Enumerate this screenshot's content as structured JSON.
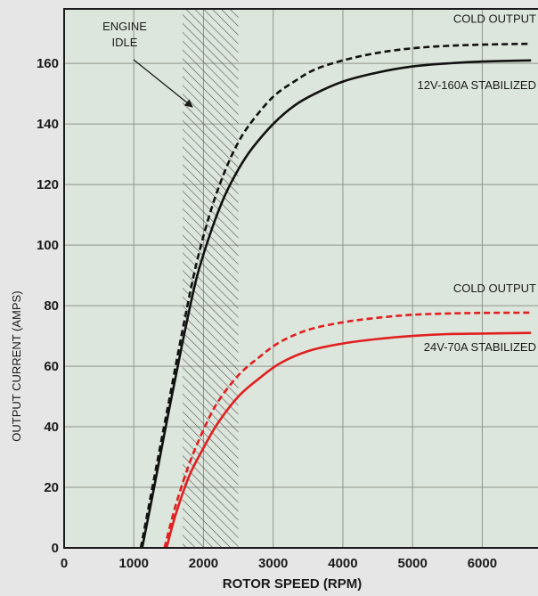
{
  "chart_data": {
    "type": "line",
    "title": "",
    "xlabel": "ROTOR SPEED (RPM)",
    "ylabel": "OUTPUT CURRENT (AMPS)",
    "xlim": [
      0,
      6800
    ],
    "ylim": [
      0,
      178
    ],
    "xticks": [
      "0",
      "1000",
      "2000",
      "3000",
      "4000",
      "5000",
      "6000"
    ],
    "yticks": [
      "0",
      "20",
      "40",
      "60",
      "80",
      "100",
      "120",
      "140",
      "160"
    ],
    "grid": true,
    "background_color": "#dde6dc",
    "series": [
      {
        "name": "COLD OUTPUT",
        "color": "#111111",
        "dashed": true,
        "x": [
          1100,
          1300,
          1500,
          1700,
          1900,
          2100,
          2300,
          2500,
          2700,
          3000,
          3300,
          3600,
          4000,
          4500,
          5000,
          5500,
          6000,
          6700
        ],
        "y": [
          0,
          24,
          48,
          72,
          94,
          111,
          124,
          134,
          141,
          149,
          154,
          158,
          161,
          163.5,
          165,
          165.8,
          166.2,
          166.5
        ]
      },
      {
        "name": "12V-160A STABILIZED",
        "color": "#111111",
        "dashed": false,
        "x": [
          1120,
          1300,
          1500,
          1700,
          1900,
          2100,
          2300,
          2500,
          2700,
          3000,
          3300,
          3600,
          4000,
          4500,
          5000,
          5500,
          6000,
          6700
        ],
        "y": [
          0,
          21,
          45,
          68,
          89,
          104,
          116,
          125,
          132,
          140,
          146,
          150,
          154,
          157,
          159,
          160,
          160.6,
          161
        ]
      },
      {
        "name": "COLD OUTPUT",
        "color": "#e01f1f",
        "dashed": true,
        "x": [
          1440,
          1600,
          1800,
          2000,
          2200,
          2500,
          2800,
          3100,
          3500,
          4000,
          4500,
          5000,
          5500,
          6000,
          6700
        ],
        "y": [
          0,
          14,
          28,
          39,
          48,
          57,
          63,
          68,
          72,
          74.5,
          76,
          77,
          77.4,
          77.6,
          77.7
        ]
      },
      {
        "name": "24V-70A STABILIZED",
        "color": "#e01f1f",
        "dashed": false,
        "x": [
          1470,
          1600,
          1800,
          2000,
          2200,
          2500,
          2800,
          3100,
          3500,
          4000,
          4500,
          5000,
          5500,
          6000,
          6700
        ],
        "y": [
          0,
          11,
          24,
          33,
          41,
          50,
          56,
          61,
          65,
          67.5,
          69,
          70,
          70.6,
          70.8,
          71
        ]
      }
    ],
    "series_labels": [
      "COLD OUTPUT",
      "12V-160A STABILIZED",
      "COLD OUTPUT",
      "24V-70A STABILIZED"
    ],
    "annotations": [
      {
        "text_lines": [
          "ENGINE",
          "IDLE"
        ],
        "band_x": [
          1700,
          2500
        ],
        "pattern": "hatched"
      }
    ]
  }
}
